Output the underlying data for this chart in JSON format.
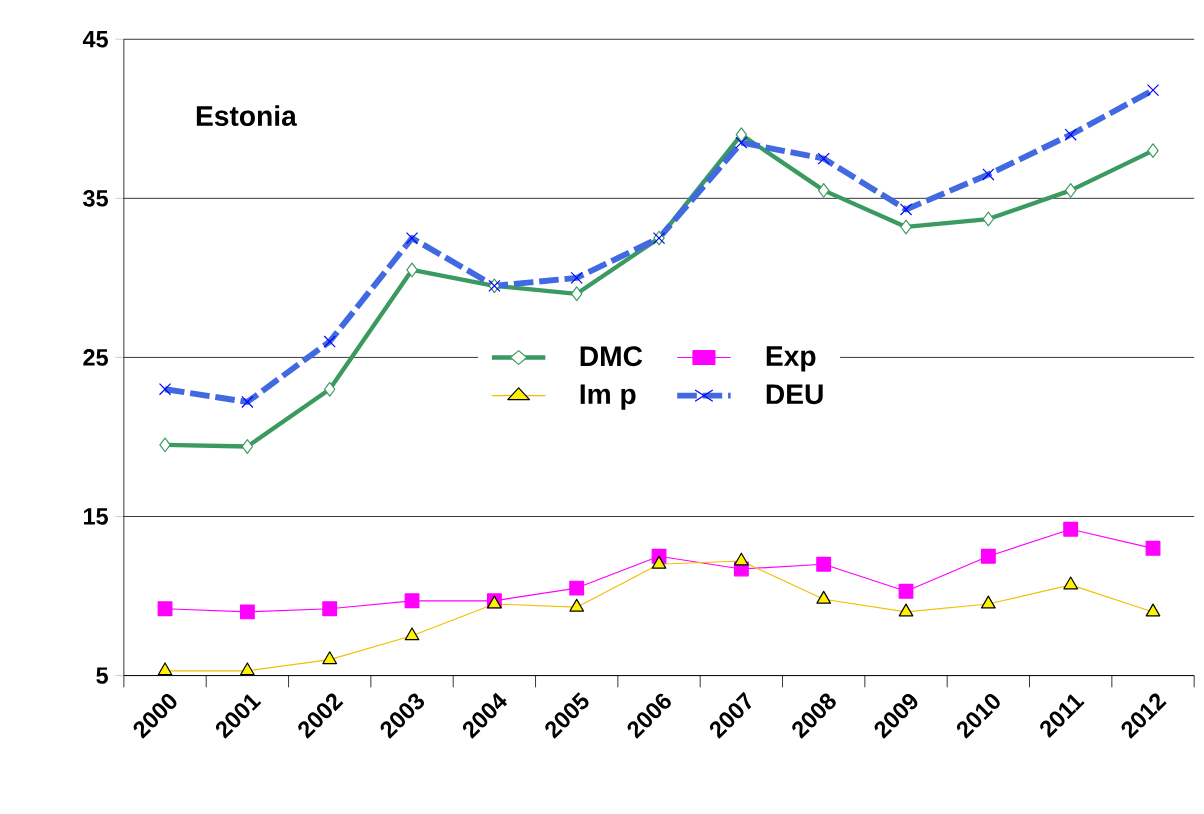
{
  "chart_data": {
    "type": "line",
    "title": "Estonia",
    "categories": [
      "2000",
      "2001",
      "2002",
      "2003",
      "2004",
      "2005",
      "2006",
      "2007",
      "2008",
      "2009",
      "2010",
      "2011",
      "2012"
    ],
    "series": [
      {
        "name": "DMC",
        "color": "#3a9a5f",
        "marker": "diamond",
        "line_style": "solid",
        "values": [
          19.5,
          19.4,
          23,
          30.5,
          29.5,
          29,
          32.5,
          39,
          35.5,
          33.2,
          33.7,
          35.5,
          38
        ]
      },
      {
        "name": "Exp",
        "color": "#ff00ff",
        "marker": "square",
        "line_style": "solid",
        "values": [
          9.2,
          9,
          9.2,
          9.7,
          9.7,
          10.5,
          12.5,
          11.7,
          12,
          10.3,
          12.5,
          14.2,
          13
        ]
      },
      {
        "name": "Im p",
        "color": "#f0c000",
        "marker": "triangle",
        "line_style": "solid",
        "values": [
          5.3,
          5.3,
          6,
          7.5,
          9.5,
          9.3,
          12,
          12.2,
          9.8,
          9,
          9.5,
          10.7,
          9
        ]
      },
      {
        "name": "DEU",
        "color": "#4169e1",
        "marker": "cross",
        "line_style": "dashed",
        "values": [
          23,
          22.2,
          26,
          32.5,
          29.5,
          30,
          32.5,
          38.5,
          37.5,
          34.3,
          36.5,
          39,
          41.8
        ]
      }
    ],
    "ylim": [
      5,
      45
    ],
    "yticks": [
      5,
      15,
      25,
      35,
      45
    ],
    "grid": "y",
    "legend": "center"
  }
}
